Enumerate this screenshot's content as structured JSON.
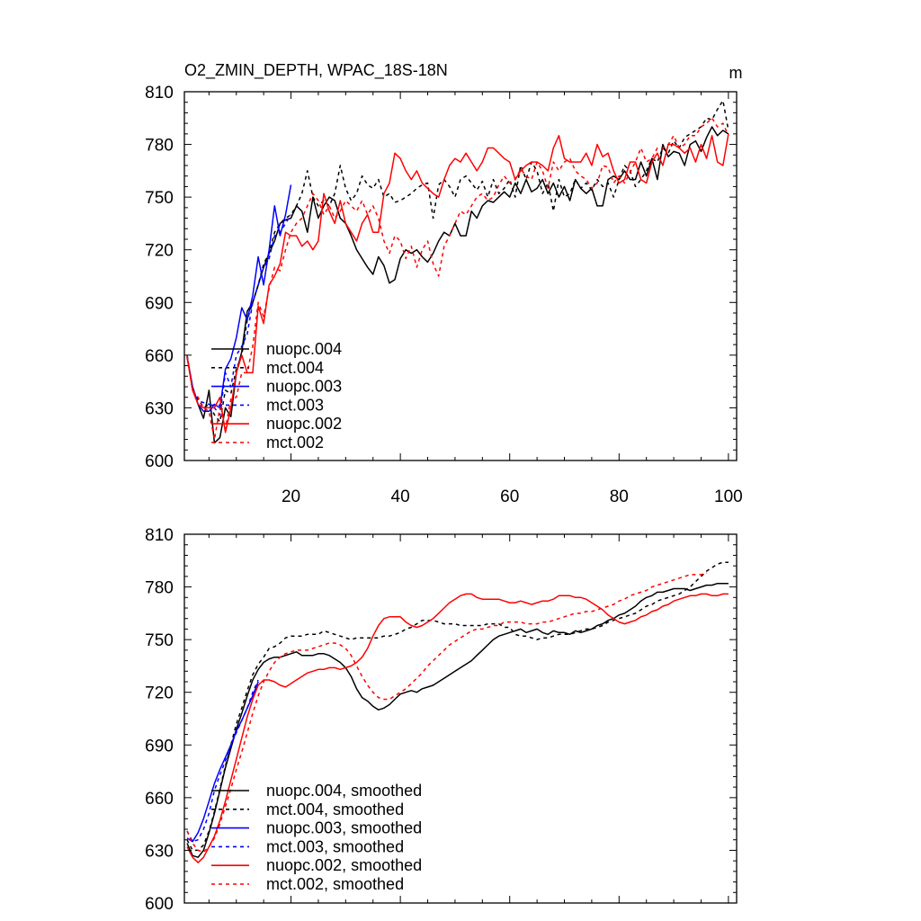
{
  "chart_data": [
    {
      "type": "line",
      "title": "O2_ZMIN_DEPTH, WPAC_18S-18N",
      "units": "m",
      "ylim": [
        600,
        810
      ],
      "xlim": [
        0.5,
        101.5
      ],
      "y_ticks": [
        600,
        630,
        660,
        690,
        720,
        750,
        780,
        810
      ],
      "x_ticks": [
        20,
        40,
        60,
        80,
        100
      ],
      "x_tick_labels": [
        "20",
        "40",
        "60",
        "80",
        "100"
      ],
      "series": [
        {
          "name": "nuopc.004",
          "color": "#000000",
          "dash": "solid",
          "start": 1,
          "values": [
            659,
            642,
            632,
            624,
            640,
            610,
            613,
            630,
            625,
            650,
            662,
            685,
            690,
            700,
            710,
            718,
            725,
            735,
            737,
            738,
            745,
            742,
            730,
            750,
            738,
            745,
            750,
            748,
            738,
            735,
            728,
            720,
            715,
            710,
            706,
            716,
            711,
            701,
            703,
            715,
            720,
            718,
            720,
            716,
            713,
            718,
            725,
            730,
            728,
            735,
            728,
            728,
            742,
            738,
            745,
            748,
            747,
            750,
            753,
            750,
            758,
            752,
            760,
            753,
            755,
            760,
            752,
            758,
            750,
            756,
            748,
            760,
            755,
            752,
            755,
            745,
            745,
            760,
            762,
            760,
            765,
            760,
            760,
            770,
            762,
            772,
            760,
            780,
            773,
            776,
            775,
            768,
            780,
            782,
            776,
            784,
            790,
            785,
            788,
            786
          ]
        },
        {
          "name": "mct.004",
          "color": "#000000",
          "dash": "dashed",
          "start": 1,
          "values": [
            660,
            640,
            635,
            630,
            632,
            626,
            622,
            640,
            638,
            652,
            660,
            680,
            690,
            700,
            712,
            718,
            730,
            735,
            738,
            740,
            745,
            752,
            765,
            750,
            745,
            748,
            745,
            752,
            768,
            755,
            748,
            752,
            762,
            757,
            755,
            760,
            750,
            752,
            747,
            748,
            750,
            752,
            755,
            757,
            758,
            738,
            757,
            760,
            756,
            750,
            760,
            762,
            758,
            754,
            759,
            750,
            760,
            752,
            755,
            760,
            750,
            768,
            760,
            770,
            765,
            752,
            758,
            742,
            760,
            750,
            752,
            760,
            755,
            758,
            754,
            760,
            756,
            758,
            750,
            760,
            768,
            765,
            756,
            760,
            765,
            772,
            770,
            778,
            775,
            782,
            778,
            784,
            786,
            788,
            790,
            795,
            794,
            800,
            805,
            788
          ]
        },
        {
          "name": "nuopc.003",
          "color": "#0000ff",
          "dash": "solid",
          "start": 1,
          "values": [
            659,
            642,
            632,
            628,
            628,
            632,
            630,
            652,
            658,
            670,
            687,
            680,
            694,
            716,
            700,
            720,
            745,
            728,
            740,
            757
          ]
        },
        {
          "name": "mct.003",
          "color": "#0000ff",
          "dash": "dashed",
          "start": 1,
          "values": [
            660,
            640,
            634,
            633,
            632,
            630,
            626,
            650,
            642,
            660,
            665,
            672,
            690,
            700,
            710,
            715,
            728,
            730,
            735,
            740
          ]
        },
        {
          "name": "nuopc.002",
          "color": "#ff0000",
          "dash": "solid",
          "start": 1,
          "values": [
            659,
            640,
            632,
            630,
            630,
            630,
            636,
            616,
            630,
            650,
            660,
            650,
            650,
            688,
            678,
            700,
            705,
            712,
            730,
            728,
            728,
            722,
            725,
            720,
            725,
            752,
            742,
            735,
            748,
            735,
            730,
            725,
            735,
            740,
            730,
            730,
            752,
            758,
            775,
            772,
            765,
            760,
            765,
            758,
            755,
            752,
            750,
            760,
            768,
            772,
            770,
            775,
            770,
            765,
            770,
            778,
            778,
            775,
            772,
            770,
            760,
            765,
            768,
            770,
            770,
            768,
            765,
            778,
            785,
            772,
            770,
            770,
            770,
            775,
            768,
            780,
            773,
            775,
            765,
            758,
            760,
            770,
            770,
            760,
            758,
            770,
            775,
            768,
            780,
            780,
            778,
            775,
            778,
            770,
            780,
            772,
            785,
            770,
            768,
            786
          ]
        },
        {
          "name": "mct.002",
          "color": "#ff0000",
          "dash": "dashed",
          "start": 1,
          "values": [
            660,
            640,
            636,
            630,
            628,
            612,
            630,
            618,
            635,
            636,
            650,
            650,
            665,
            690,
            682,
            698,
            710,
            708,
            720,
            730,
            735,
            738,
            745,
            752,
            748,
            740,
            745,
            738,
            742,
            748,
            745,
            742,
            748,
            740,
            745,
            738,
            725,
            718,
            728,
            725,
            715,
            722,
            710,
            720,
            725,
            712,
            705,
            722,
            728,
            735,
            742,
            740,
            745,
            750,
            752,
            748,
            750,
            757,
            762,
            758,
            760,
            766,
            762,
            760,
            770,
            765,
            755,
            770,
            765,
            770,
            772,
            765,
            762,
            760,
            755,
            758,
            768,
            767,
            758,
            762,
            758,
            764,
            770,
            778,
            770,
            772,
            778,
            778,
            780,
            785,
            778,
            780,
            785,
            785,
            790,
            792,
            795,
            790,
            792,
            785
          ]
        }
      ],
      "legend": [
        "nuopc.004",
        "mct.004",
        "nuopc.003",
        "mct.003",
        "nuopc.002",
        "mct.002"
      ]
    },
    {
      "type": "line",
      "title": "",
      "ylim": [
        600,
        810
      ],
      "xlim": [
        0.5,
        101.5
      ],
      "y_ticks": [
        600,
        630,
        660,
        690,
        720,
        750,
        780,
        810
      ],
      "x_ticks": [
        20,
        40,
        60,
        80,
        100
      ],
      "x_tick_labels": [],
      "series": [
        {
          "name": "nuopc.004, smoothed",
          "color": "#000000",
          "dash": "solid",
          "start": 1,
          "values": [
            634,
            627,
            626,
            630,
            640,
            651,
            664,
            677,
            688,
            699,
            708,
            718,
            727,
            733,
            737,
            739,
            740,
            740,
            741,
            742,
            743,
            741,
            741,
            741,
            742,
            742,
            741,
            739,
            737,
            734,
            729,
            722,
            717,
            715,
            712,
            710,
            711,
            713,
            716,
            719,
            720,
            721,
            720,
            722,
            723,
            724,
            726,
            728,
            730,
            732,
            734,
            736,
            738,
            741,
            744,
            747,
            750,
            752,
            753,
            754,
            755,
            756,
            754,
            755,
            756,
            754,
            753,
            755,
            754,
            754,
            753,
            755,
            754,
            755,
            756,
            758,
            759,
            761,
            762,
            764,
            765,
            767,
            769,
            772,
            774,
            775,
            777,
            777,
            778,
            779,
            779,
            779,
            778,
            779,
            780,
            781,
            781,
            782,
            782,
            782
          ]
        },
        {
          "name": "mct.004, smoothed",
          "color": "#000000",
          "dash": "dashed",
          "start": 1,
          "values": [
            636,
            630,
            630,
            633,
            641,
            652,
            665,
            678,
            690,
            702,
            711,
            721,
            730,
            736,
            740,
            745,
            746,
            748,
            751,
            752,
            752,
            752,
            753,
            753,
            753,
            755,
            754,
            753,
            752,
            751,
            750,
            751,
            751,
            751,
            751,
            751,
            752,
            752,
            753,
            754,
            756,
            757,
            759,
            761,
            761,
            761,
            760,
            759,
            759,
            759,
            758,
            758,
            758,
            758,
            758,
            759,
            759,
            759,
            757,
            757,
            753,
            752,
            752,
            751,
            750,
            751,
            751,
            752,
            753,
            753,
            753,
            754,
            755,
            756,
            756,
            757,
            758,
            760,
            761,
            762,
            763,
            764,
            765,
            767,
            769,
            770,
            772,
            773,
            774,
            775,
            776,
            778,
            780,
            783,
            786,
            789,
            791,
            793,
            794,
            794
          ]
        },
        {
          "name": "nuopc.003, smoothed",
          "color": "#0000ff",
          "dash": "solid",
          "start": 1,
          "values": [
            637,
            635,
            640,
            648,
            658,
            668,
            676,
            683,
            690,
            698,
            704,
            711,
            718,
            726
          ]
        },
        {
          "name": "mct.003, smoothed",
          "color": "#0000ff",
          "dash": "dashed",
          "start": 1,
          "values": [
            641,
            635,
            636,
            642,
            651,
            664,
            673,
            681,
            690,
            697,
            704,
            711,
            720,
            727
          ]
        },
        {
          "name": "nuopc.002, smoothed",
          "color": "#ff0000",
          "dash": "solid",
          "start": 1,
          "values": [
            632,
            626,
            623,
            626,
            632,
            638,
            647,
            658,
            670,
            682,
            694,
            706,
            716,
            724,
            727,
            727,
            726,
            724,
            723,
            725,
            727,
            729,
            731,
            732,
            733,
            733,
            734,
            734,
            733,
            734,
            735,
            737,
            740,
            745,
            752,
            758,
            762,
            763,
            763,
            763,
            760,
            758,
            757,
            758,
            760,
            762,
            765,
            768,
            771,
            773,
            775,
            776,
            776,
            774,
            773,
            773,
            773,
            773,
            772,
            771,
            771,
            772,
            771,
            770,
            771,
            772,
            772,
            773,
            775,
            775,
            775,
            774,
            774,
            773,
            771,
            769,
            767,
            764,
            762,
            760,
            759,
            760,
            761,
            763,
            764,
            766,
            767,
            769,
            770,
            772,
            773,
            774,
            775,
            775,
            776,
            776,
            775,
            775,
            776,
            776
          ]
        },
        {
          "name": "mct.002, smoothed",
          "color": "#ff0000",
          "dash": "dashed",
          "start": 1,
          "values": [
            641,
            634,
            630,
            629,
            632,
            637,
            645,
            655,
            665,
            676,
            686,
            697,
            708,
            718,
            726,
            732,
            737,
            740,
            742,
            743,
            744,
            744,
            744,
            745,
            746,
            747,
            748,
            748,
            747,
            745,
            741,
            735,
            729,
            724,
            720,
            717,
            716,
            716,
            718,
            720,
            722,
            725,
            728,
            731,
            735,
            738,
            741,
            744,
            747,
            749,
            751,
            753,
            755,
            756,
            756,
            757,
            758,
            758,
            760,
            760,
            760,
            760,
            759,
            759,
            759,
            760,
            760,
            761,
            762,
            763,
            764,
            765,
            765,
            766,
            766,
            767,
            768,
            769,
            770,
            772,
            773,
            775,
            776,
            777,
            778,
            780,
            781,
            782,
            783,
            784,
            785,
            786,
            787,
            787,
            787,
            788
          ]
        }
      ],
      "legend": [
        "nuopc.004, smoothed",
        "mct.004, smoothed",
        "nuopc.003, smoothed",
        "mct.003, smoothed",
        "nuopc.002, smoothed",
        "mct.002, smoothed"
      ]
    }
  ]
}
